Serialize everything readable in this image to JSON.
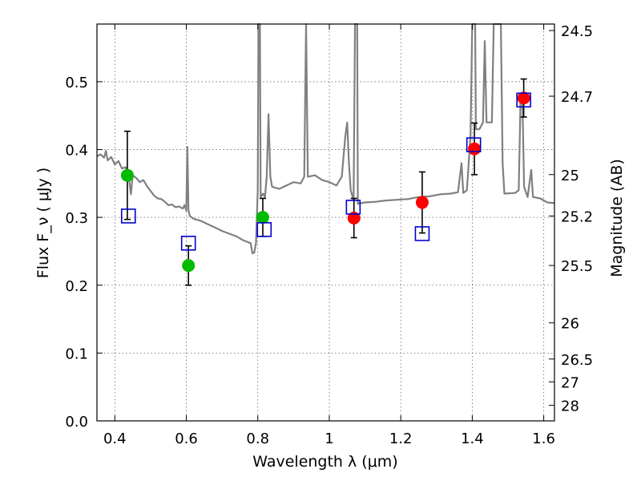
{
  "chart_data": {
    "type": "scatter",
    "xlabel": "Wavelength  λ (μm)",
    "ylabel": "Flux  F_ν  ( μJy )",
    "y2label": "Magnitude (AB)",
    "xlim": [
      0.35,
      1.63
    ],
    "ylim": [
      0.0,
      0.585
    ],
    "grid": true,
    "x_ticks": [
      0.4,
      0.6,
      0.8,
      1.0,
      1.2,
      1.4,
      1.6
    ],
    "x_tick_labels": [
      "0.4",
      "0.6",
      "0.8",
      "1",
      "1.2",
      "1.4",
      "1.6"
    ],
    "y_ticks": [
      0.0,
      0.1,
      0.2,
      0.3,
      0.4,
      0.5
    ],
    "y_tick_labels": [
      "0.0",
      "0.1",
      "0.2",
      "0.3",
      "0.4",
      "0.5"
    ],
    "y2_ticks": [
      {
        "label": "24.5",
        "flux": 0.5754
      },
      {
        "label": "24.7",
        "flux": 0.4786
      },
      {
        "label": "25",
        "flux": 0.3631
      },
      {
        "label": "25.2",
        "flux": 0.302
      },
      {
        "label": "25.5",
        "flux": 0.2291
      },
      {
        "label": "26",
        "flux": 0.1445
      },
      {
        "label": "26.5",
        "flux": 0.0912
      },
      {
        "label": "27",
        "flux": 0.0575
      },
      {
        "label": "28",
        "flux": 0.0229
      }
    ],
    "colors": {
      "green": "#00bb00",
      "red": "#ff0000",
      "model_box": "#0000cc",
      "spectrum": "#808080",
      "errorbar": "#000000"
    },
    "series": [
      {
        "marker": "circle",
        "color": "green",
        "points": [
          {
            "x": 0.435,
            "y": 0.362,
            "yerr": 0.065
          },
          {
            "x": 0.606,
            "y": 0.229,
            "yerr": 0.029
          },
          {
            "x": 0.814,
            "y": 0.3,
            "yerr": 0.028
          }
        ]
      },
      {
        "marker": "circle",
        "color": "red",
        "points": [
          {
            "x": 1.069,
            "y": 0.299,
            "yerr": 0.029
          },
          {
            "x": 1.26,
            "y": 0.322,
            "yerr": 0.045
          },
          {
            "x": 1.406,
            "y": 0.401,
            "yerr": 0.038
          },
          {
            "x": 1.544,
            "y": 0.476,
            "yerr": 0.028
          }
        ]
      },
      {
        "marker": "square",
        "color": "model_box",
        "points": [
          {
            "x": 0.438,
            "y": 0.302
          },
          {
            "x": 0.606,
            "y": 0.262
          },
          {
            "x": 0.818,
            "y": 0.282
          },
          {
            "x": 1.067,
            "y": 0.315
          },
          {
            "x": 1.26,
            "y": 0.276
          },
          {
            "x": 1.404,
            "y": 0.407
          },
          {
            "x": 1.544,
            "y": 0.473
          }
        ]
      },
      {
        "type": "line",
        "color": "spectrum",
        "points": [
          [
            0.35,
            0.39
          ],
          [
            0.36,
            0.393
          ],
          [
            0.37,
            0.388
          ],
          [
            0.375,
            0.398
          ],
          [
            0.38,
            0.384
          ],
          [
            0.39,
            0.389
          ],
          [
            0.4,
            0.378
          ],
          [
            0.41,
            0.383
          ],
          [
            0.42,
            0.372
          ],
          [
            0.43,
            0.374
          ],
          [
            0.44,
            0.357
          ],
          [
            0.445,
            0.334
          ],
          [
            0.45,
            0.362
          ],
          [
            0.46,
            0.358
          ],
          [
            0.47,
            0.352
          ],
          [
            0.48,
            0.355
          ],
          [
            0.49,
            0.346
          ],
          [
            0.5,
            0.339
          ],
          [
            0.51,
            0.332
          ],
          [
            0.52,
            0.328
          ],
          [
            0.53,
            0.327
          ],
          [
            0.54,
            0.323
          ],
          [
            0.55,
            0.318
          ],
          [
            0.56,
            0.319
          ],
          [
            0.57,
            0.315
          ],
          [
            0.58,
            0.316
          ],
          [
            0.59,
            0.313
          ],
          [
            0.595,
            0.318
          ],
          [
            0.6,
            0.31
          ],
          [
            0.603,
            0.404
          ],
          [
            0.606,
            0.31
          ],
          [
            0.61,
            0.302
          ],
          [
            0.62,
            0.298
          ],
          [
            0.64,
            0.295
          ],
          [
            0.66,
            0.29
          ],
          [
            0.68,
            0.285
          ],
          [
            0.7,
            0.28
          ],
          [
            0.72,
            0.276
          ],
          [
            0.74,
            0.272
          ],
          [
            0.76,
            0.266
          ],
          [
            0.78,
            0.262
          ],
          [
            0.785,
            0.247
          ],
          [
            0.79,
            0.248
          ],
          [
            0.795,
            0.262
          ],
          [
            0.8,
            0.34
          ],
          [
            0.802,
            0.585
          ],
          [
            0.806,
            0.585
          ],
          [
            0.808,
            0.33
          ],
          [
            0.815,
            0.335
          ],
          [
            0.82,
            0.33
          ],
          [
            0.825,
            0.36
          ],
          [
            0.83,
            0.452
          ],
          [
            0.835,
            0.36
          ],
          [
            0.84,
            0.345
          ],
          [
            0.86,
            0.342
          ],
          [
            0.88,
            0.347
          ],
          [
            0.9,
            0.352
          ],
          [
            0.92,
            0.35
          ],
          [
            0.93,
            0.36
          ],
          [
            0.935,
            0.585
          ],
          [
            0.94,
            0.36
          ],
          [
            0.96,
            0.362
          ],
          [
            0.98,
            0.355
          ],
          [
            1.0,
            0.352
          ],
          [
            1.02,
            0.347
          ],
          [
            1.035,
            0.36
          ],
          [
            1.045,
            0.42
          ],
          [
            1.05,
            0.44
          ],
          [
            1.055,
            0.38
          ],
          [
            1.06,
            0.34
          ],
          [
            1.068,
            0.325
          ],
          [
            1.072,
            0.585
          ],
          [
            1.078,
            0.585
          ],
          [
            1.08,
            0.32
          ],
          [
            1.1,
            0.322
          ],
          [
            1.13,
            0.323
          ],
          [
            1.16,
            0.325
          ],
          [
            1.19,
            0.326
          ],
          [
            1.22,
            0.327
          ],
          [
            1.25,
            0.33
          ],
          [
            1.28,
            0.331
          ],
          [
            1.31,
            0.334
          ],
          [
            1.34,
            0.335
          ],
          [
            1.36,
            0.337
          ],
          [
            1.37,
            0.38
          ],
          [
            1.375,
            0.336
          ],
          [
            1.385,
            0.34
          ],
          [
            1.395,
            0.42
          ],
          [
            1.4,
            0.585
          ],
          [
            1.408,
            0.585
          ],
          [
            1.41,
            0.43
          ],
          [
            1.42,
            0.43
          ],
          [
            1.43,
            0.44
          ],
          [
            1.435,
            0.56
          ],
          [
            1.44,
            0.44
          ],
          [
            1.455,
            0.44
          ],
          [
            1.46,
            0.585
          ],
          [
            1.48,
            0.585
          ],
          [
            1.485,
            0.38
          ],
          [
            1.49,
            0.335
          ],
          [
            1.52,
            0.336
          ],
          [
            1.53,
            0.34
          ],
          [
            1.535,
            0.47
          ],
          [
            1.54,
            0.48
          ],
          [
            1.545,
            0.345
          ],
          [
            1.555,
            0.33
          ],
          [
            1.565,
            0.37
          ],
          [
            1.57,
            0.33
          ],
          [
            1.59,
            0.328
          ],
          [
            1.61,
            0.322
          ],
          [
            1.63,
            0.321
          ]
        ]
      }
    ]
  }
}
